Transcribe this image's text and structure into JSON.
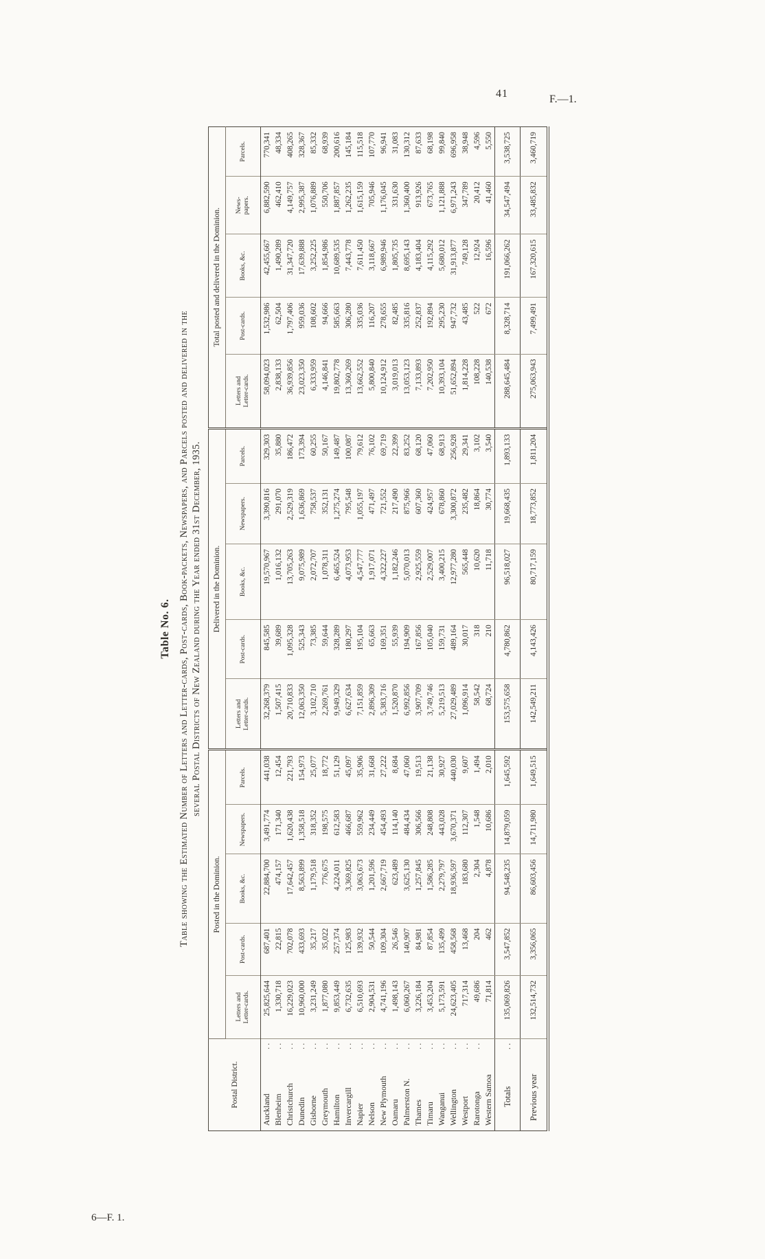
{
  "page": {
    "number": "41",
    "header_right": "F.—1.",
    "footer_left": "6—F. 1."
  },
  "table_number": "Table No. 6.",
  "title_line1": "Table showing the Estimated Number of Letters and Letter-cards, Post-cards, Book-packets, Newspapers, and Parcels posted and delivered in the",
  "title_line2": "several Postal Districts of New Zealand during the Year ended 31st December, 1935.",
  "columns": {
    "row_header": "Postal District.",
    "groups": [
      {
        "label": "Posted in the Dominion.",
        "cols": [
          "Letters and\nLetter-cards.",
          "Post-cards.",
          "Books, &c.",
          "Newspapers.",
          "Parcels."
        ]
      },
      {
        "label": "Delivered in the Dominion.",
        "cols": [
          "Letters and\nLetter-cards.",
          "Post-cards.",
          "Books, &c.",
          "Newspapers.",
          "Parcels."
        ]
      },
      {
        "label": "Total posted and delivered in the Dominion.",
        "cols": [
          "Letters and\nLetter-cards.",
          "Post-cards.",
          "Books, &c.",
          "News-\npapers.",
          "Parcels."
        ]
      }
    ]
  },
  "rows": [
    {
      "district": "Auckland",
      "leader": "..",
      "values": [
        "25,825,644",
        "687,401",
        "22,884,700",
        "3,491,774",
        "441,038",
        "32,268,379",
        "845,585",
        "19,570,967",
        "3,390,816",
        "329,303",
        "58,094,023",
        "1,532,986",
        "42,455,667",
        "6,882,590",
        "770,341"
      ]
    },
    {
      "district": "Blenheim",
      "leader": "..",
      "values": [
        "1,330,718",
        "22,815",
        "474,157",
        "171,340",
        "12,454",
        "1,507,415",
        "39,689",
        "1,016,132",
        "291,070",
        "35,880",
        "2,838,133",
        "62,504",
        "1,490,289",
        "462,410",
        "48,334"
      ]
    },
    {
      "district": "Christchurch",
      "leader": "..",
      "values": [
        "16,229,023",
        "702,078",
        "17,642,457",
        "1,620,438",
        "221,793",
        "20,710,833",
        "1,095,328",
        "13,705,263",
        "2,529,319",
        "186,472",
        "36,939,856",
        "1,797,406",
        "31,347,720",
        "4,149,757",
        "408,265"
      ]
    },
    {
      "district": "Dunedin",
      "leader": "..",
      "values": [
        "10,960,000",
        "433,693",
        "8,563,899",
        "1,358,518",
        "154,973",
        "12,063,350",
        "525,343",
        "9,075,989",
        "1,636,869",
        "173,394",
        "23,023,350",
        "959,036",
        "17,639,888",
        "2,995,387",
        "328,367"
      ]
    },
    {
      "district": "Gisborne",
      "leader": "..",
      "values": [
        "3,231,249",
        "35,217",
        "1,179,518",
        "318,352",
        "25,077",
        "3,102,710",
        "73,385",
        "2,072,707",
        "758,537",
        "60,255",
        "6,333,959",
        "108,602",
        "3,252,225",
        "1,076,889",
        "85,332"
      ]
    },
    {
      "district": "Greymouth",
      "leader": "..",
      "values": [
        "1,877,080",
        "35,022",
        "776,675",
        "198,575",
        "18,772",
        "2,269,761",
        "59,644",
        "1,078,311",
        "352,131",
        "50,167",
        "4,146,841",
        "94,666",
        "1,854,986",
        "550,706",
        "68,939"
      ]
    },
    {
      "district": "Hamilton",
      "leader": "..",
      "values": [
        "9,853,449",
        "257,374",
        "4,224,011",
        "612,583",
        "51,129",
        "9,949,329",
        "328,289",
        "6,465,524",
        "1,275,274",
        "149,487",
        "19,802,778",
        "585,663",
        "10,689,535",
        "1,887,857",
        "200,616"
      ]
    },
    {
      "district": "Invercargill",
      "leader": "..",
      "values": [
        "6,732,635",
        "125,983",
        "3,369,825",
        "466,687",
        "45,097",
        "6,627,634",
        "180,297",
        "4,073,953",
        "795,548",
        "100,087",
        "13,360,269",
        "306,280",
        "7,443,778",
        "1,262,235",
        "145,184"
      ]
    },
    {
      "district": "Napier",
      "leader": "..",
      "values": [
        "6,510,693",
        "139,932",
        "3,063,673",
        "559,962",
        "35,906",
        "7,151,859",
        "195,104",
        "4,547,777",
        "1,055,197",
        "79,612",
        "13,662,552",
        "335,036",
        "7,611,450",
        "1,615,159",
        "115,518"
      ]
    },
    {
      "district": "Nelson",
      "leader": "..",
      "values": [
        "2,904,531",
        "50,544",
        "1,201,596",
        "234,449",
        "31,668",
        "2,896,309",
        "65,663",
        "1,917,071",
        "471,497",
        "76,102",
        "5,800,840",
        "116,207",
        "3,118,667",
        "705,946",
        "107,770"
      ]
    },
    {
      "district": "New Plymouth",
      "leader": "..",
      "values": [
        "4,741,196",
        "109,304",
        "2,667,719",
        "454,493",
        "27,222",
        "5,383,716",
        "169,351",
        "4,322,227",
        "721,552",
        "69,719",
        "10,124,912",
        "278,655",
        "6,989,946",
        "1,176,045",
        "96,941"
      ]
    },
    {
      "district": "Oamaru",
      "leader": "..",
      "values": [
        "1,498,143",
        "26,546",
        "623,489",
        "114,140",
        "8,684",
        "1,520,870",
        "55,939",
        "1,182,246",
        "217,490",
        "22,399",
        "3,019,013",
        "82,485",
        "1,805,735",
        "331,630",
        "31,083"
      ]
    },
    {
      "district": "Palmerston N.",
      "leader": "..",
      "values": [
        "6,060,267",
        "140,907",
        "3,625,130",
        "484,434",
        "47,060",
        "6,992,856",
        "194,909",
        "5,070,013",
        "875,966",
        "83,252",
        "13,053,123",
        "335,816",
        "8,695,143",
        "1,360,400",
        "130,312"
      ]
    },
    {
      "district": "Thames",
      "leader": "..",
      "values": [
        "3,226,184",
        "84,981",
        "1,257,845",
        "306,566",
        "19,513",
        "3,907,709",
        "167,856",
        "2,925,559",
        "607,360",
        "68,120",
        "7,133,893",
        "252,837",
        "4,183,404",
        "913,926",
        "87,633"
      ]
    },
    {
      "district": "Timaru",
      "leader": "..",
      "values": [
        "3,453,204",
        "87,854",
        "1,586,285",
        "248,808",
        "21,138",
        "3,749,746",
        "105,040",
        "2,529,007",
        "424,957",
        "47,060",
        "7,202,950",
        "192,894",
        "4,115,292",
        "673,765",
        "68,198"
      ]
    },
    {
      "district": "Wanganui",
      "leader": "..",
      "values": [
        "5,173,591",
        "135,499",
        "2,279,797",
        "443,028",
        "30,927",
        "5,219,513",
        "159,731",
        "3,400,215",
        "678,860",
        "68,913",
        "10,393,104",
        "295,230",
        "5,680,012",
        "1,121,888",
        "99,840"
      ]
    },
    {
      "district": "Wellington",
      "leader": "..",
      "values": [
        "24,623,405",
        "458,568",
        "18,936,597",
        "3,670,371",
        "440,030",
        "27,029,489",
        "489,164",
        "12,977,280",
        "3,300,872",
        "256,928",
        "51,652,894",
        "947,732",
        "31,913,877",
        "6,971,243",
        "696,958"
      ]
    },
    {
      "district": "Westport",
      "leader": "..",
      "values": [
        "717,314",
        "13,468",
        "183,680",
        "112,307",
        "9,607",
        "1,096,914",
        "30,017",
        "565,448",
        "235,482",
        "29,341",
        "1,814,228",
        "43,485",
        "749,128",
        "347,789",
        "38,948"
      ]
    },
    {
      "district": "Rarotonga",
      "leader": "..",
      "values": [
        "49,686",
        "204",
        "2,304",
        "1,548",
        "1,494",
        "58,542",
        "318",
        "10,620",
        "18,864",
        "3,102",
        "108,228",
        "522",
        "12,924",
        "20,412",
        "4,596"
      ]
    },
    {
      "district": "Western Samoa",
      "leader": "",
      "values": [
        "71,814",
        "462",
        "4,878",
        "10,686",
        "2,010",
        "68,724",
        "210",
        "11,718",
        "30,774",
        "3,540",
        "140,538",
        "672",
        "16,596",
        "41,460",
        "5,550"
      ]
    }
  ],
  "totals_row": {
    "district": "Totals",
    "leader": "..",
    "values": [
      "135,069,826",
      "3,547,852",
      "94,548,235",
      "14,879,059",
      "1,645,592",
      "153,575,658",
      "4,780,862",
      "96,518,027",
      "19,668,435",
      "1,893,133",
      "288,645,484",
      "8,328,714",
      "191,066,262",
      "34,547,494",
      "3,538,725"
    ]
  },
  "previous_row": {
    "district": "Previous year",
    "leader": "",
    "values": [
      "132,514,732",
      "3,356,065",
      "86,603,456",
      "14,711,980",
      "1,649,515",
      "142,549,211",
      "4,143,426",
      "80,717,159",
      "18,773,852",
      "1,811,204",
      "275,063,943",
      "7,499,491",
      "167,320,615",
      "33,485,832",
      "3,460,719"
    ]
  }
}
